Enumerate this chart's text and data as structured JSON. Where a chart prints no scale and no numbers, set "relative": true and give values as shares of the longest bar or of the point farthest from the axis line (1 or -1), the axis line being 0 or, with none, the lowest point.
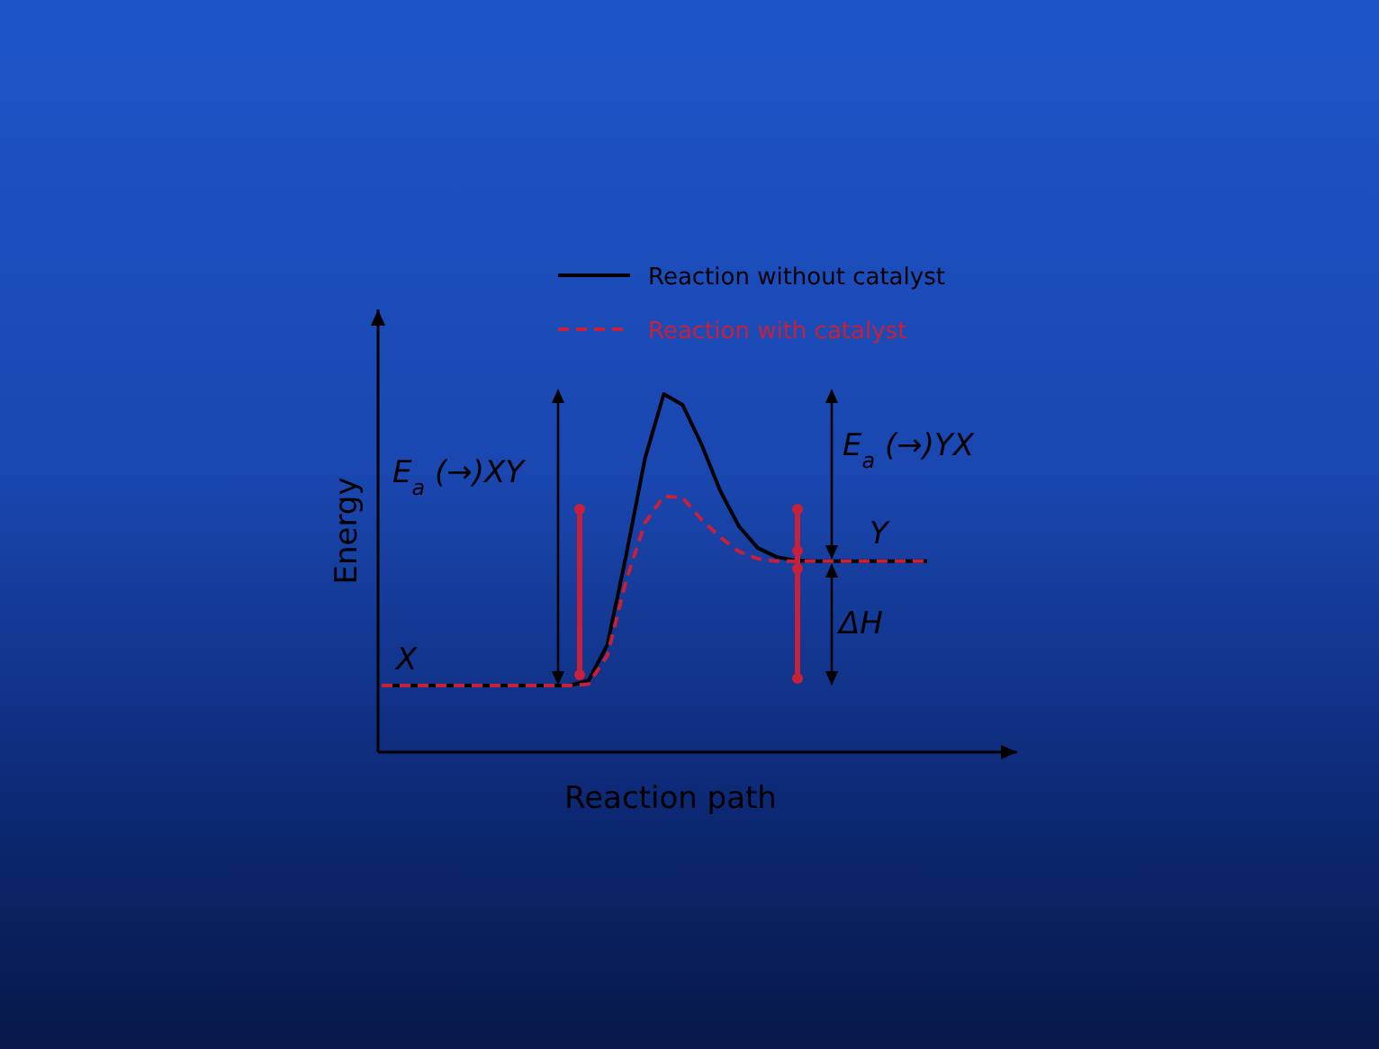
{
  "chart_data": {
    "type": "line",
    "relative": true,
    "xlabel": "Reaction path",
    "ylabel": "Energy",
    "legend": "top",
    "categories": [
      null,
      null,
      null,
      null,
      null,
      null,
      null,
      null,
      null,
      null,
      null,
      null,
      null,
      null,
      null,
      null,
      null,
      null,
      null,
      null,
      null,
      null,
      null,
      null,
      null,
      null,
      null,
      null,
      null,
      null
    ],
    "series": [
      {
        "name": "Reaction without catalyst",
        "color": "#000000",
        "line_style": "solid",
        "values": [
          0.186,
          0.186,
          0.186,
          0.186,
          0.186,
          0.186,
          0.186,
          0.186,
          0.186,
          0.186,
          0.186,
          0.2,
          0.3,
          0.55,
          0.82,
          1,
          0.97,
          0.86,
          0.73,
          0.63,
          0.57,
          0.545,
          0.535,
          0.533,
          0.533,
          0.533,
          0.533,
          0.533,
          0.533,
          0.533
        ]
      },
      {
        "name": "Reaction with catalyst",
        "color": "#c8203a",
        "line_style": "dashed",
        "values": [
          0.186,
          0.186,
          0.186,
          0.186,
          0.186,
          0.186,
          0.186,
          0.186,
          0.186,
          0.186,
          0.186,
          0.19,
          0.27,
          0.48,
          0.64,
          0.715,
          0.71,
          0.65,
          0.6,
          0.56,
          0.54,
          0.533,
          0.533,
          0.533,
          0.533,
          0.533,
          0.533,
          0.533,
          0.533,
          0.533
        ]
      }
    ],
    "annotations": [
      "E$_{a}$ (→)XY",
      "E$_{a}$ (→)YX",
      "X",
      "Y",
      "ΔH"
    ]
  }
}
